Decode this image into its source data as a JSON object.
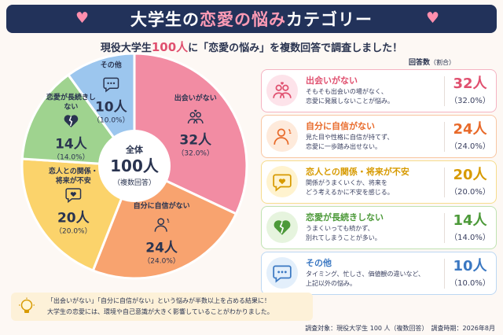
{
  "header": {
    "title_pre": "大学生の",
    "title_hl": "恋愛の悩み",
    "title_post": "カテゴリー",
    "subtitle_pre": "現役大学生",
    "subtitle_num": "100人",
    "subtitle_post": "に「恋愛の悩み」を複数回答で調査しました！"
  },
  "legend_header": {
    "label": "回答数",
    "sub": "（割合）"
  },
  "center": {
    "label": "全体",
    "total": "100人",
    "note": "（複数回答）"
  },
  "chart_data": {
    "type": "pie",
    "total": 100,
    "unit": "人",
    "slices": [
      {
        "label": "出会いがない",
        "count": 32,
        "percent": 32.0,
        "count_text": "32人",
        "percent_text": "（32.0%）",
        "color": "#f28ca3",
        "icon": "people-heart-icon"
      },
      {
        "label": "自分に自信がない",
        "count": 24,
        "percent": 24.0,
        "count_text": "24人",
        "percent_text": "（24.0%）",
        "color": "#f8a36f",
        "icon": "worried-person-icon"
      },
      {
        "label": "恋人との関係・将来が不安",
        "count": 20,
        "percent": 20.0,
        "count_text": "20人",
        "percent_text": "（20.0%）",
        "color": "#fbd36b",
        "icon": "heart-bubble-icon"
      },
      {
        "label": "恋愛が長続きしない",
        "count": 14,
        "percent": 14.0,
        "count_text": "14人",
        "percent_text": "（14.0%）",
        "color": "#9fd38f",
        "icon": "broken-heart-icon"
      },
      {
        "label": "その他",
        "count": 10,
        "percent": 10.0,
        "count_text": "10人",
        "percent_text": "（10.0%）",
        "color": "#9cc6ee",
        "icon": "speech-bubble-icon"
      }
    ]
  },
  "cards": [
    {
      "title": "出会いがない",
      "desc1": "そもそも出会いの場がなく、",
      "desc2": "恋愛に発展しないことが悩み。",
      "accent": "#e0506f",
      "border": "#f5b3c2",
      "circle": "#fde3ea"
    },
    {
      "title": "自分に自信がない",
      "desc1": "見た目や性格に自信が持てず、",
      "desc2": "恋愛に一歩踏み出せない。",
      "accent": "#e86a2a",
      "border": "#f8c6a2",
      "circle": "#feeadb"
    },
    {
      "title": "恋人との関係・将来が不安",
      "desc1": "関係がうまくいくか、将来を",
      "desc2": "どう考えるかに不安を感じる。",
      "accent": "#d79a00",
      "border": "#f6dc8c",
      "circle": "#fff3cf"
    },
    {
      "title": "恋愛が長続きしない",
      "desc1": "うまくいっても続かず、",
      "desc2": "別れてしまうことが多い。",
      "accent": "#4d9a3a",
      "border": "#bfe2b1",
      "circle": "#e6f4de"
    },
    {
      "title": "その他",
      "desc1": "タイミング、忙しさ、価値観の違いなど、",
      "desc2": "上記以外の悩み。",
      "accent": "#3b78c2",
      "border": "#bcd7f3",
      "circle": "#e3effb"
    }
  ],
  "note": {
    "line1": "「出会いがない」「自分に自信がない」という悩みが半数以上を占める結果に！",
    "line2": "大学生の恋愛には、環境や自己意識が大きく影響していることがわかりました。"
  },
  "footer": "調査対象：現役大学生 100 人（複数回答）　調査時期：2026年8月"
}
